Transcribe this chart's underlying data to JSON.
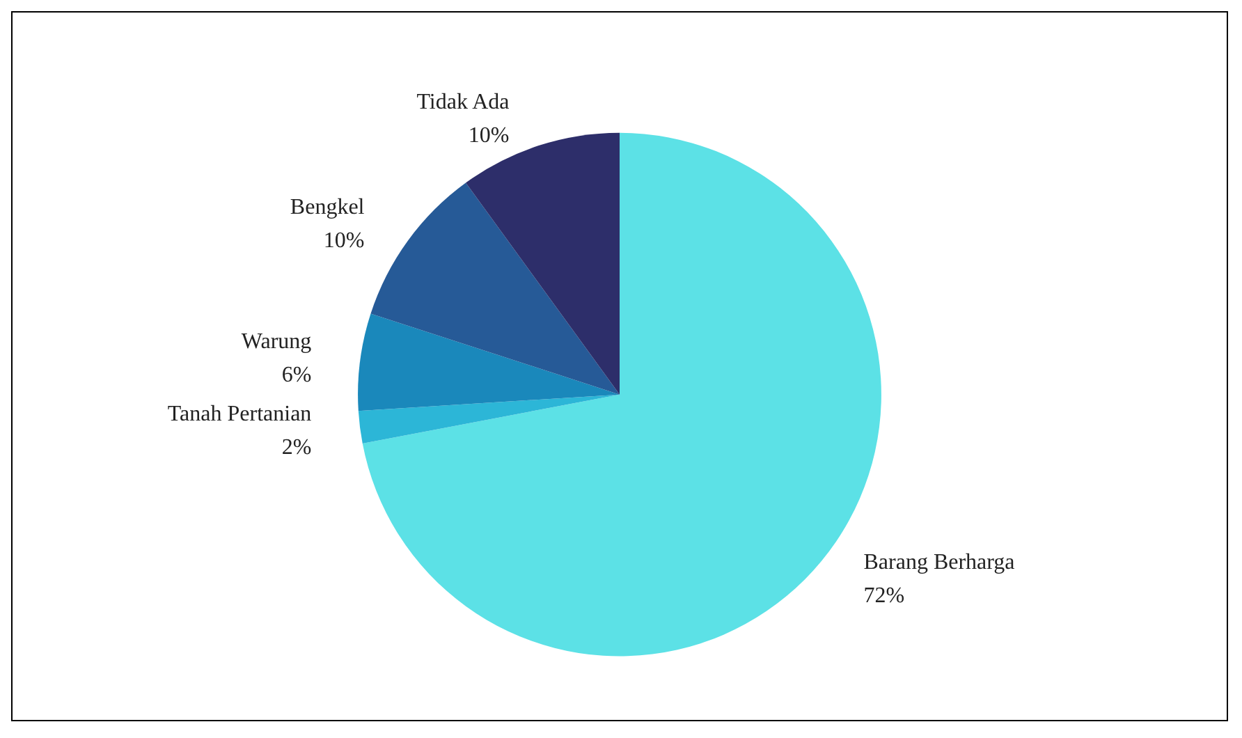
{
  "chart_data": {
    "type": "pie",
    "categories": [
      "Barang Berharga",
      "Tanah Pertanian",
      "Warung",
      "Bengkel",
      "Tidak Ada"
    ],
    "values": [
      72,
      2,
      6,
      10,
      10
    ],
    "value_labels": [
      "72%",
      "2%",
      "6%",
      "10%",
      "10%"
    ],
    "colors": [
      "#5ce1e6",
      "#2cb6d7",
      "#1a88bb",
      "#265a97",
      "#2d2e6a"
    ],
    "legend": false
  }
}
